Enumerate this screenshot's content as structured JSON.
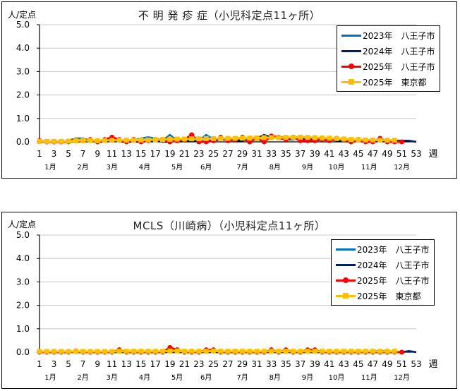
{
  "charts": [
    {
      "title": "不 明 発 疹 症（小児科定点11ヶ所）",
      "unit_label": "人/定点",
      "x_unit": "週",
      "legend": [
        {
          "label": "2023年　八王子市",
          "color": "#0070C0",
          "marker": "none"
        },
        {
          "label": "2024年　八王子市",
          "color": "#002060",
          "marker": "none"
        },
        {
          "label": "2025年　八王子市",
          "color": "#FF0000",
          "marker": "circle"
        },
        {
          "label": "2025年　東京都",
          "color": "#FFC000",
          "marker": "square"
        }
      ]
    },
    {
      "title": "MCLS（川崎病）（小児科定点11ヶ所）",
      "unit_label": "人/定点",
      "x_unit": "週",
      "legend": [
        {
          "label": "2023年　八王子市",
          "color": "#0070C0",
          "marker": "none"
        },
        {
          "label": "2024年　八王子市",
          "color": "#002060",
          "marker": "none"
        },
        {
          "label": "2025年　八王子市",
          "color": "#FF0000",
          "marker": "circle"
        },
        {
          "label": "2025年　東京都",
          "color": "#FFC000",
          "marker": "square"
        }
      ]
    }
  ],
  "chart_data": [
    {
      "type": "line",
      "title": "不 明 発 疹 症（小児科定点11ヶ所）",
      "xlabel": "週",
      "ylabel": "人/定点",
      "ylim": [
        0,
        5.0
      ],
      "yticks": [
        "0.0",
        "1.0",
        "2.0",
        "3.0",
        "4.0",
        "5.0"
      ],
      "xticks": [
        1,
        3,
        5,
        7,
        9,
        11,
        13,
        15,
        17,
        19,
        21,
        23,
        25,
        27,
        29,
        31,
        33,
        35,
        37,
        39,
        41,
        43,
        45,
        47,
        49,
        51,
        53
      ],
      "month_labels": [
        {
          "label": "1月",
          "week": 2.5
        },
        {
          "label": "2月",
          "week": 7
        },
        {
          "label": "3月",
          "week": 11
        },
        {
          "label": "4月",
          "week": 15.5
        },
        {
          "label": "5月",
          "week": 20
        },
        {
          "label": "6月",
          "week": 24
        },
        {
          "label": "7月",
          "week": 29
        },
        {
          "label": "8月",
          "week": 33.5
        },
        {
          "label": "9月",
          "week": 38
        },
        {
          "label": "10月",
          "week": 42
        },
        {
          "label": "11月",
          "week": 46.5
        },
        {
          "label": "12月",
          "week": 51
        }
      ],
      "grid": true,
      "legend_position": "upper right",
      "x": [
        1,
        2,
        3,
        4,
        5,
        6,
        7,
        8,
        9,
        10,
        11,
        12,
        13,
        14,
        15,
        16,
        17,
        18,
        19,
        20,
        21,
        22,
        23,
        24,
        25,
        26,
        27,
        28,
        29,
        30,
        31,
        32,
        33,
        34,
        35,
        36,
        37,
        38,
        39,
        40,
        41,
        42,
        43,
        44,
        45,
        46,
        47,
        48,
        49,
        50,
        51,
        52,
        53
      ],
      "series": [
        {
          "name": "2023年　八王子市",
          "values": [
            0,
            0,
            0,
            0,
            0.05,
            0.15,
            0.15,
            0.05,
            0,
            0.05,
            0.1,
            0.05,
            0.05,
            0.05,
            0.15,
            0.2,
            0.15,
            0.05,
            0.3,
            0.05,
            0.1,
            0.1,
            0.05,
            0.3,
            0.1,
            0.1,
            0.15,
            0.1,
            0.15,
            0.15,
            0.2,
            0.2,
            0.15,
            0.2,
            0.2,
            0.15,
            0.2,
            0.2,
            0.15,
            0.15,
            0.15,
            0.1,
            0.1,
            0.05,
            0.1,
            0.05,
            0.1,
            0.05,
            0.05,
            0.05,
            0.05,
            0.05,
            0
          ]
        },
        {
          "name": "2024年　八王子市",
          "values": [
            0,
            0,
            0,
            0,
            0,
            0.05,
            0.05,
            0.05,
            0,
            0,
            0.05,
            0,
            0,
            0,
            0,
            0.05,
            0.05,
            0,
            0,
            0.05,
            0.05,
            0.05,
            0,
            0.05,
            0.05,
            0.1,
            0.1,
            0.05,
            0.05,
            0.1,
            0.15,
            0.3,
            0.2,
            0.15,
            0.1,
            0.1,
            0.15,
            0.1,
            0.1,
            0.1,
            0.1,
            0.05,
            0.05,
            0.05,
            0.05,
            0.05,
            0.05,
            0.05,
            0.05,
            0.05,
            0.05,
            0.05,
            0
          ]
        },
        {
          "name": "2025年　八王子市",
          "values": [
            0.05,
            0,
            0,
            0,
            0,
            0.05,
            0.05,
            0.1,
            0,
            0.1,
            0.2,
            0.1,
            0,
            0.1,
            0,
            0.05,
            0.1,
            0.1,
            0,
            0.05,
            0.1,
            0.3,
            0,
            0,
            0.05,
            0.2,
            0.05,
            0.1,
            0.2,
            0,
            0.15,
            0,
            0.25,
            0.2,
            0.1,
            0.2,
            0.05,
            0.05,
            0.05,
            0.1,
            0.05,
            0.15,
            0.1,
            0,
            0.1,
            0,
            0,
            0.15,
            0,
            0,
            0,
            null,
            null
          ]
        },
        {
          "name": "2025年　東京都",
          "values": [
            0.02,
            0.02,
            0.02,
            0.02,
            0.03,
            0.05,
            0.06,
            0.06,
            0.05,
            0.06,
            0.07,
            0.07,
            0.07,
            0.07,
            0.08,
            0.08,
            0.09,
            0.1,
            0.11,
            0.12,
            0.12,
            0.13,
            0.13,
            0.14,
            0.14,
            0.15,
            0.15,
            0.15,
            0.16,
            0.16,
            0.17,
            0.18,
            0.18,
            0.18,
            0.19,
            0.19,
            0.2,
            0.19,
            0.18,
            0.17,
            0.16,
            0.14,
            0.12,
            0.1,
            0.09,
            0.08,
            0.08,
            0.07,
            0.07,
            0.07,
            null,
            null,
            null
          ]
        }
      ]
    },
    {
      "type": "line",
      "title": "MCLS（川崎病）（小児科定点11ヶ所）",
      "xlabel": "週",
      "ylabel": "人/定点",
      "ylim": [
        0,
        5.0
      ],
      "yticks": [
        "0.0",
        "1.0",
        "2.0",
        "3.0",
        "4.0",
        "5.0"
      ],
      "xticks": [
        1,
        3,
        5,
        7,
        9,
        11,
        13,
        15,
        17,
        19,
        21,
        23,
        25,
        27,
        29,
        31,
        33,
        35,
        37,
        39,
        41,
        43,
        45,
        47,
        49,
        51,
        53
      ],
      "month_labels": [
        {
          "label": "1月",
          "week": 2.5
        },
        {
          "label": "2月",
          "week": 7
        },
        {
          "label": "3月",
          "week": 11
        },
        {
          "label": "4月",
          "week": 15.5
        },
        {
          "label": "5月",
          "week": 20
        },
        {
          "label": "6月",
          "week": 24
        },
        {
          "label": "7月",
          "week": 29
        },
        {
          "label": "8月",
          "week": 33.5
        },
        {
          "label": "9月",
          "week": 38
        },
        {
          "label": "10月",
          "week": 42
        },
        {
          "label": "11月",
          "week": 46.5
        },
        {
          "label": "12月",
          "week": 51
        }
      ],
      "grid": true,
      "legend_position": "upper right",
      "x": [
        1,
        2,
        3,
        4,
        5,
        6,
        7,
        8,
        9,
        10,
        11,
        12,
        13,
        14,
        15,
        16,
        17,
        18,
        19,
        20,
        21,
        22,
        23,
        24,
        25,
        26,
        27,
        28,
        29,
        30,
        31,
        32,
        33,
        34,
        35,
        36,
        37,
        38,
        39,
        40,
        41,
        42,
        43,
        44,
        45,
        46,
        47,
        48,
        49,
        50,
        51,
        52,
        53
      ],
      "series": [
        {
          "name": "2023年　八王子市",
          "values": [
            0,
            0,
            0,
            0,
            0.05,
            0,
            0,
            0,
            0,
            0,
            0,
            0,
            0,
            0,
            0,
            0,
            0,
            0,
            0.05,
            0,
            0,
            0,
            0,
            0,
            0,
            0,
            0,
            0,
            0,
            0,
            0,
            0,
            0,
            0,
            0,
            0,
            0,
            0,
            0,
            0,
            0,
            0,
            0,
            0,
            0,
            0,
            0.05,
            0.05,
            0,
            0,
            0,
            0.05,
            0
          ]
        },
        {
          "name": "2024年　八王子市",
          "values": [
            0,
            0,
            0,
            0,
            0,
            0,
            0,
            0,
            0,
            0,
            0,
            0,
            0,
            0,
            0,
            0,
            0,
            0,
            0,
            0,
            0,
            0,
            0,
            0,
            0,
            0,
            0,
            0,
            0,
            0,
            0,
            0,
            0,
            0,
            0,
            0,
            0,
            0,
            0,
            0,
            0,
            0,
            0,
            0,
            0,
            0,
            0,
            0.05,
            0.05,
            0,
            0,
            0.05,
            0
          ]
        },
        {
          "name": "2025年　八王子市",
          "values": [
            0,
            0,
            0,
            0,
            0,
            0.05,
            0,
            0,
            0,
            0,
            0,
            0.1,
            0,
            0,
            0,
            0,
            0,
            0,
            0.2,
            0.1,
            0,
            0,
            0,
            0.1,
            0.1,
            0,
            0,
            0,
            0,
            0,
            0,
            0,
            0.1,
            0,
            0.1,
            0,
            0,
            0.1,
            0.1,
            0,
            0,
            0,
            0,
            0,
            0,
            0,
            0,
            0,
            0,
            0,
            0,
            null,
            null
          ]
        },
        {
          "name": "2025年　東京都",
          "values": [
            0.03,
            0.03,
            0.03,
            0.03,
            0.03,
            0.03,
            0.03,
            0.03,
            0.03,
            0.03,
            0.03,
            0.04,
            0.04,
            0.04,
            0.04,
            0.04,
            0.04,
            0.04,
            0.05,
            0.05,
            0.04,
            0.04,
            0.04,
            0.04,
            0.05,
            0.04,
            0.04,
            0.04,
            0.04,
            0.04,
            0.04,
            0.04,
            0.04,
            0.04,
            0.04,
            0.04,
            0.04,
            0.04,
            0.04,
            0.04,
            0.04,
            0.04,
            0.04,
            0.04,
            0.04,
            0.04,
            0.04,
            0.04,
            0.04,
            0.04,
            null,
            null,
            null
          ]
        }
      ]
    }
  ]
}
